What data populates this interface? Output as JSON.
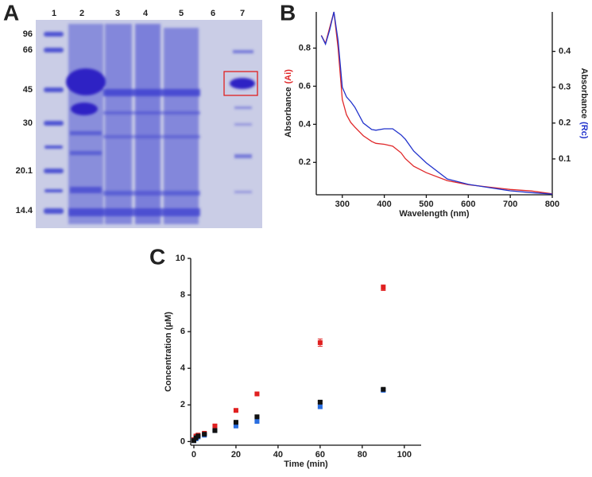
{
  "gel": {
    "panel_label": "A",
    "lanes": [
      "1",
      "2",
      "3",
      "4",
      "5",
      "6",
      "7"
    ],
    "markers": [
      "96",
      "66",
      "45",
      "30",
      "20.1",
      "14.4"
    ]
  },
  "chart_data": [
    {
      "type": "line",
      "panel_label": "B",
      "xlabel": "Wavelength (nm)",
      "ylabel": "Absorbance",
      "x": [
        250,
        260,
        270,
        280,
        290,
        300,
        310,
        320,
        330,
        350,
        370,
        380,
        400,
        420,
        440,
        450,
        470,
        500,
        550,
        600,
        650,
        700,
        750,
        800
      ],
      "series": [
        {
          "name": "(Ai)",
          "color": "#e0282a",
          "values": [
            0.867,
            0.825,
            0.908,
            0.99,
            0.8,
            0.53,
            0.45,
            0.41,
            0.385,
            0.34,
            0.31,
            0.3,
            0.295,
            0.285,
            0.25,
            0.22,
            0.18,
            0.146,
            0.104,
            0.083,
            0.07,
            0.058,
            0.05,
            0.035
          ]
        },
        {
          "name": "(Rc)",
          "color": "#2233cc",
          "axis": "y2",
          "values": [
            0.444,
            0.42,
            0.46,
            0.51,
            0.43,
            0.3,
            0.273,
            0.26,
            0.244,
            0.2,
            0.182,
            0.18,
            0.184,
            0.184,
            0.167,
            0.155,
            0.122,
            0.089,
            0.044,
            0.029,
            0.02,
            0.011,
            0.006,
            0.002
          ]
        }
      ],
      "xlim": [
        238,
        800
      ],
      "xticks": [
        300,
        400,
        500,
        600,
        700,
        800
      ],
      "ylim": [
        0.03,
        0.99
      ],
      "yticks": [
        0.2,
        0.4,
        0.6,
        0.8
      ],
      "y2lim": [
        0,
        0.51
      ],
      "y2ticks": [
        0.1,
        0.2,
        0.3,
        0.4
      ]
    },
    {
      "type": "scatter",
      "panel_label": "C",
      "xlabel": "Time (min)",
      "ylabel": "Concentration (μM)",
      "x": [
        0,
        1,
        2,
        5,
        10,
        20,
        30,
        60,
        90
      ],
      "series": [
        {
          "color": "#e02020",
          "values": [
            0.1,
            0.3,
            0.35,
            0.45,
            0.85,
            1.7,
            2.6,
            5.4,
            8.4
          ],
          "errors": [
            0.05,
            0.05,
            0.05,
            0.05,
            0.05,
            0.05,
            0.05,
            0.2,
            0.15
          ]
        },
        {
          "color": "#2a6ee0",
          "values": [
            0.05,
            0.15,
            0.25,
            0.35,
            0.6,
            0.85,
            1.1,
            1.9,
            2.8
          ],
          "errors": [
            0.03,
            0.03,
            0.03,
            0.03,
            0.03,
            0.03,
            0.05,
            0.06,
            0.06
          ]
        },
        {
          "color": "#111111",
          "values": [
            0.05,
            0.2,
            0.3,
            0.4,
            0.6,
            1.05,
            1.35,
            2.15,
            2.85
          ],
          "errors": [
            0.03,
            0.03,
            0.03,
            0.03,
            0.03,
            0.03,
            0.05,
            0.06,
            0.06
          ]
        }
      ],
      "xlim": [
        -1.5,
        108
      ],
      "xticks": [
        0,
        20,
        40,
        60,
        80,
        100
      ],
      "ylim": [
        -0.2,
        10
      ],
      "yticks": [
        0,
        2,
        4,
        6,
        8,
        10
      ]
    }
  ]
}
